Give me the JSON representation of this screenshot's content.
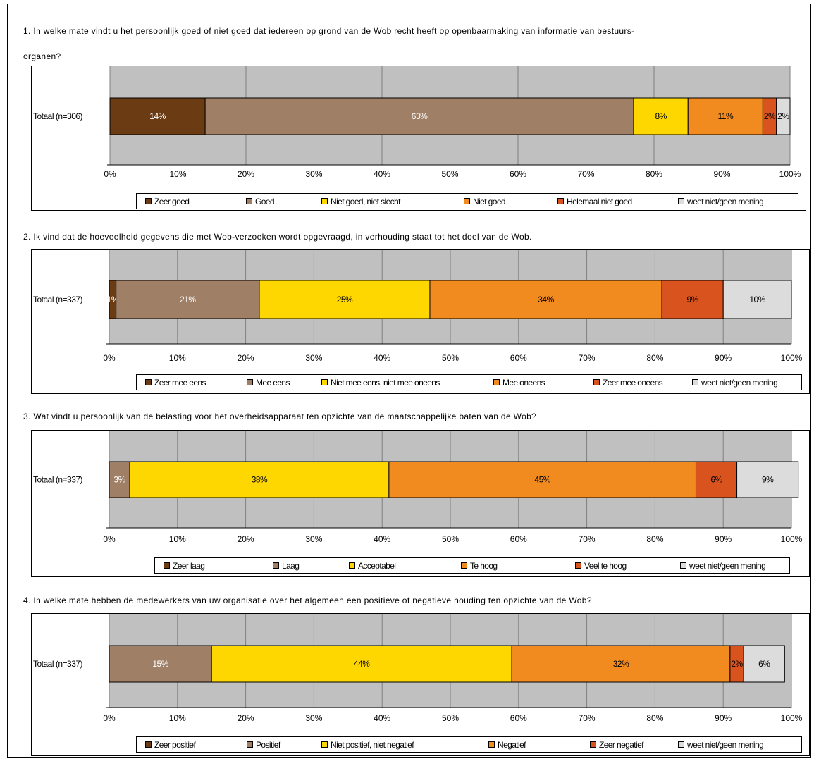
{
  "colors": {
    "plot_background": "#c0c0c0",
    "gridline": "#808080",
    "zeer_positief": "#6b3c14",
    "positief": "#9f8066",
    "neutraal": "#ffd700",
    "negatief": "#f28b1f",
    "zeer_negatief": "#d9531e",
    "weet_niet": "#dcdcdc"
  },
  "charts": [
    {
      "title_line1": "1. In welke mate vindt u het persoonlijk goed of niet goed dat iedereen op grond van de Wob recht heeft op openbaarmaking van informatie van bestuurs-",
      "title_line2": "organen?",
      "category_label": "Totaal (n=306)",
      "legend": [
        "Zeer goed",
        "Goed",
        "Niet goed, niet slecht",
        "Niet goed",
        "Helemaal niet goed",
        "weet niet/geen mening"
      ]
    },
    {
      "title_line1": "2. Ik vind dat de hoeveelheid gegevens die met Wob-verzoeken wordt opgevraagd, in verhouding staat tot het doel van de Wob.",
      "title_line2": "",
      "category_label": "Totaal (n=337)",
      "legend": [
        "Zeer mee eens",
        "Mee eens",
        "Niet mee eens, niet mee oneens",
        "Mee oneens",
        "Zeer mee oneens",
        "weet niet/geen mening"
      ]
    },
    {
      "title_line1": "3. Wat vindt u persoonlijk van de belasting voor het overheidsapparaat ten opzichte van de maatschappelijke baten van de Wob?",
      "title_line2": "",
      "category_label": "Totaal (n=337)",
      "legend": [
        "Zeer laag",
        "Laag",
        "Acceptabel",
        "Te hoog",
        "Veel te hoog",
        "weet niet/geen mening"
      ]
    },
    {
      "title_line1": "4. In welke mate hebben de medewerkers van uw organisatie over het algemeen een positieve of negatieve houding ten opzichte van de Wob?",
      "title_line2": "",
      "category_label": "Totaal (n=337)",
      "legend": [
        "Zeer positief",
        "Positief",
        "Niet positief, niet negatief",
        "Negatief",
        "Zeer negatief",
        "weet niet/geen mening"
      ]
    }
  ],
  "chart_data": [
    {
      "type": "bar",
      "orientation": "horizontal",
      "stacked": "percent",
      "categories": [
        "Totaal (n=306)"
      ],
      "series": [
        {
          "name": "Zeer goed",
          "values": [
            14
          ],
          "label": "14%"
        },
        {
          "name": "Goed",
          "values": [
            63
          ],
          "label": "63%"
        },
        {
          "name": "Niet goed, niet slecht",
          "values": [
            8
          ],
          "label": "8%"
        },
        {
          "name": "Niet goed",
          "values": [
            11
          ],
          "label": "11%"
        },
        {
          "name": "Helemaal niet goed",
          "values": [
            2
          ],
          "label": "2%"
        },
        {
          "name": "weet niet/geen mening",
          "values": [
            2
          ],
          "label": "2%"
        }
      ],
      "xlim": [
        0,
        100
      ],
      "xticks": [
        "0%",
        "10%",
        "20%",
        "30%",
        "40%",
        "50%",
        "60%",
        "70%",
        "80%",
        "90%",
        "100%"
      ],
      "grid": true,
      "legend_position": "bottom"
    },
    {
      "type": "bar",
      "orientation": "horizontal",
      "stacked": "percent",
      "categories": [
        "Totaal (n=337)"
      ],
      "series": [
        {
          "name": "Zeer mee eens",
          "values": [
            1
          ],
          "label": "1%"
        },
        {
          "name": "Mee eens",
          "values": [
            21
          ],
          "label": "21%"
        },
        {
          "name": "Niet mee eens, niet mee oneens",
          "values": [
            25
          ],
          "label": "25%"
        },
        {
          "name": "Mee oneens",
          "values": [
            34
          ],
          "label": "34%"
        },
        {
          "name": "Zeer mee oneens",
          "values": [
            9
          ],
          "label": "9%"
        },
        {
          "name": "weet niet/geen mening",
          "values": [
            10
          ],
          "label": "10%"
        }
      ],
      "xlim": [
        0,
        100
      ],
      "xticks": [
        "0%",
        "10%",
        "20%",
        "30%",
        "40%",
        "50%",
        "60%",
        "70%",
        "80%",
        "90%",
        "100%"
      ],
      "grid": true,
      "legend_position": "bottom"
    },
    {
      "type": "bar",
      "orientation": "horizontal",
      "stacked": "percent",
      "categories": [
        "Totaal (n=337)"
      ],
      "series": [
        {
          "name": "Zeer laag",
          "values": [
            0
          ],
          "label": ""
        },
        {
          "name": "Laag",
          "values": [
            3
          ],
          "label": "3%"
        },
        {
          "name": "Acceptabel",
          "values": [
            38
          ],
          "label": "38%"
        },
        {
          "name": "Te hoog",
          "values": [
            45
          ],
          "label": "45%"
        },
        {
          "name": "Veel te hoog",
          "values": [
            6
          ],
          "label": "6%"
        },
        {
          "name": "weet niet/geen mening",
          "values": [
            9
          ],
          "label": "9%"
        }
      ],
      "xlim": [
        0,
        100
      ],
      "xticks": [
        "0%",
        "10%",
        "20%",
        "30%",
        "40%",
        "50%",
        "60%",
        "70%",
        "80%",
        "90%",
        "100%"
      ],
      "grid": true,
      "legend_position": "bottom"
    },
    {
      "type": "bar",
      "orientation": "horizontal",
      "stacked": "percent",
      "categories": [
        "Totaal (n=337)"
      ],
      "series": [
        {
          "name": "Zeer positief",
          "values": [
            0
          ],
          "label": ""
        },
        {
          "name": "Positief",
          "values": [
            15
          ],
          "label": "15%"
        },
        {
          "name": "Niet positief, niet negatief",
          "values": [
            44
          ],
          "label": "44%"
        },
        {
          "name": "Negatief",
          "values": [
            32
          ],
          "label": "32%"
        },
        {
          "name": "Zeer negatief",
          "values": [
            2
          ],
          "label": "2%"
        },
        {
          "name": "weet niet/geen mening",
          "values": [
            6
          ],
          "label": "6%"
        }
      ],
      "xlim": [
        0,
        100
      ],
      "xticks": [
        "0%",
        "10%",
        "20%",
        "30%",
        "40%",
        "50%",
        "60%",
        "70%",
        "80%",
        "90%",
        "100%"
      ],
      "grid": true,
      "legend_position": "bottom"
    }
  ]
}
